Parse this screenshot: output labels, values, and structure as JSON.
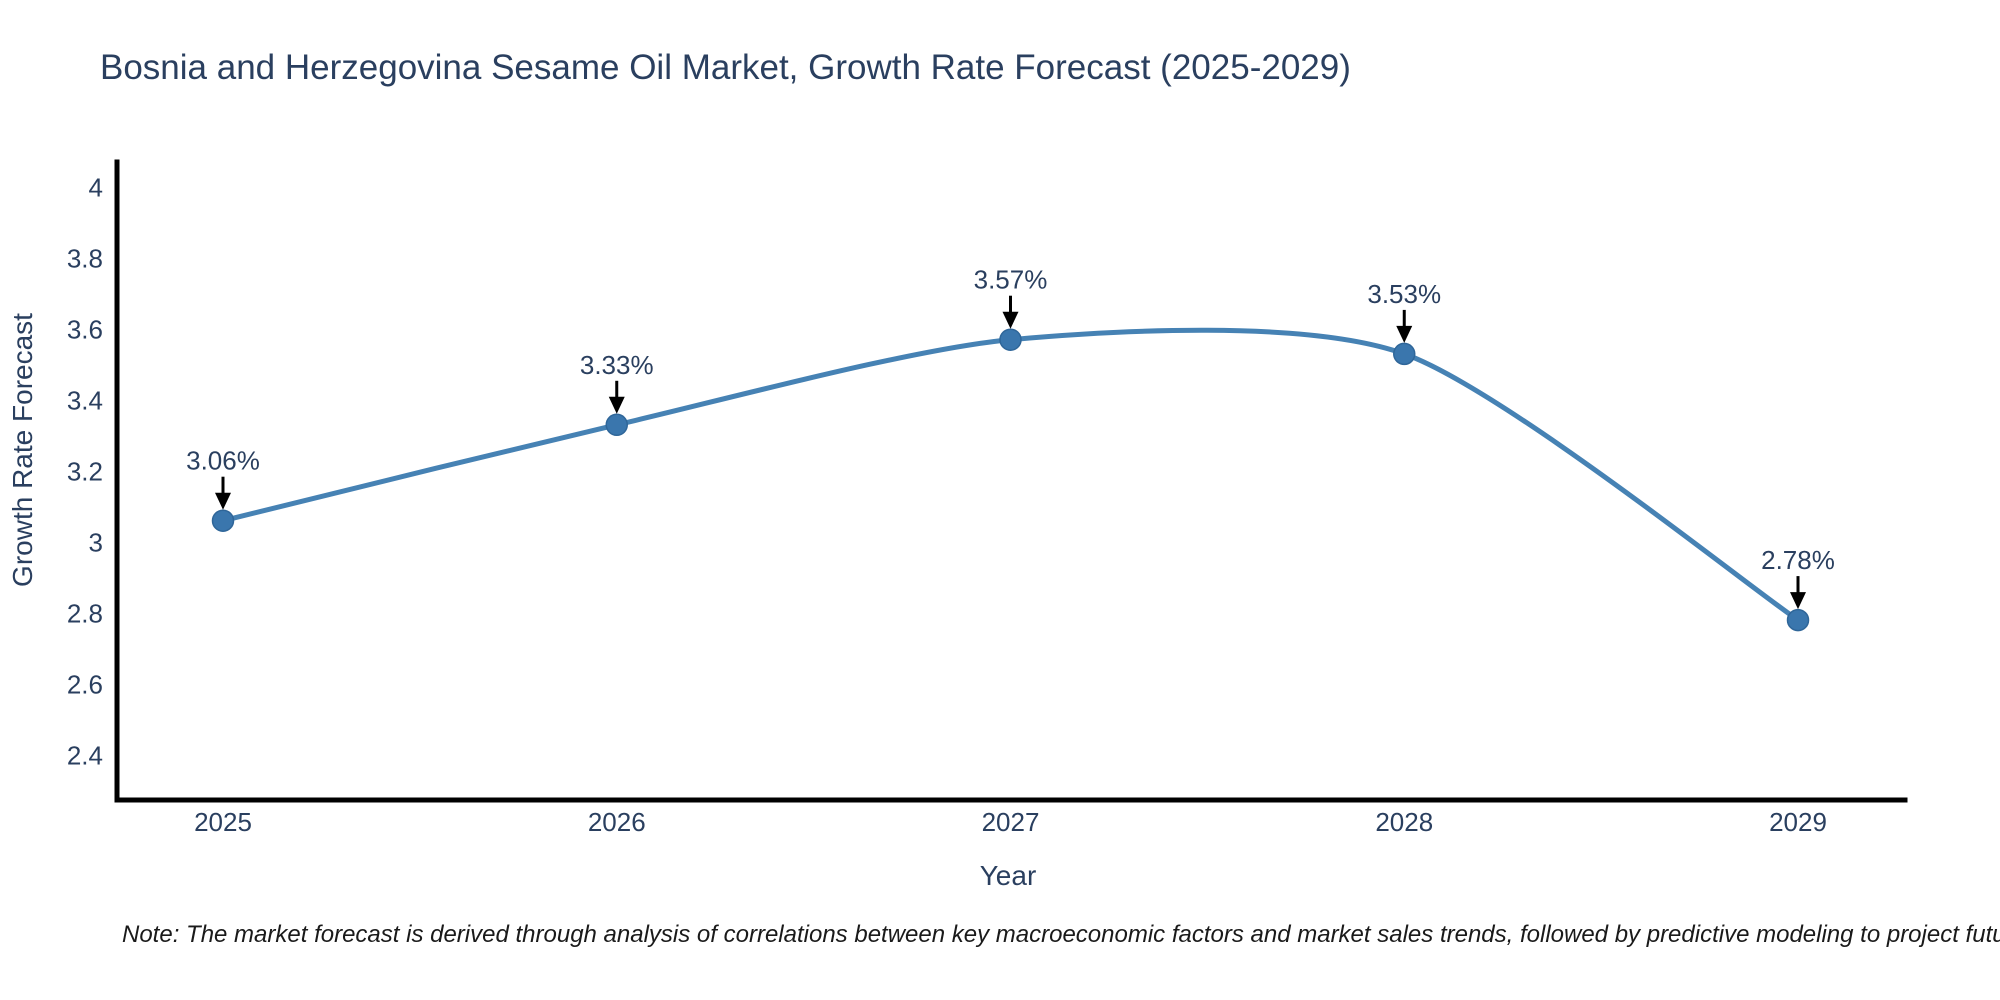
{
  "title": "Bosnia and Herzegovina Sesame Oil Market, Growth Rate Forecast (2025-2029)",
  "note": "Note: The market forecast is derived through analysis of correlations between key macroeconomic factors and market sales trends, followed by predictive modeling to project future sales",
  "chart_data": {
    "type": "line",
    "x": [
      2025,
      2026,
      2027,
      2028,
      2029
    ],
    "categories": [
      "2025",
      "2026",
      "2027",
      "2028",
      "2029"
    ],
    "values": [
      3.06,
      3.33,
      3.57,
      3.53,
      2.78
    ],
    "point_labels": [
      "3.06%",
      "3.33%",
      "3.57%",
      "3.53%",
      "2.78%"
    ],
    "title": "Bosnia and Herzegovina Sesame Oil Market, Growth Rate Forecast (2025-2029)",
    "xlabel": "Year",
    "ylabel": "Growth Rate Forecast",
    "ylim": [
      2.27,
      4.07
    ],
    "yticks": [
      4,
      3.8,
      3.6,
      3.4,
      3.2,
      3,
      2.8,
      2.6,
      2.4
    ],
    "ytick_labels": [
      "4",
      "3.8",
      "3.6",
      "3.4",
      "3.2",
      "3",
      "2.8",
      "2.6",
      "2.4"
    ],
    "grid": false,
    "legend": false,
    "line_shape": "spline",
    "line_color": "#4682b4",
    "marker_color": "#3a76ad",
    "marker_edge_color": "#2f6699",
    "axis_color": "#000000",
    "text_color": "#2a3f5f",
    "annotation_arrow_color": "#000000",
    "background_color": "#ffffff"
  }
}
